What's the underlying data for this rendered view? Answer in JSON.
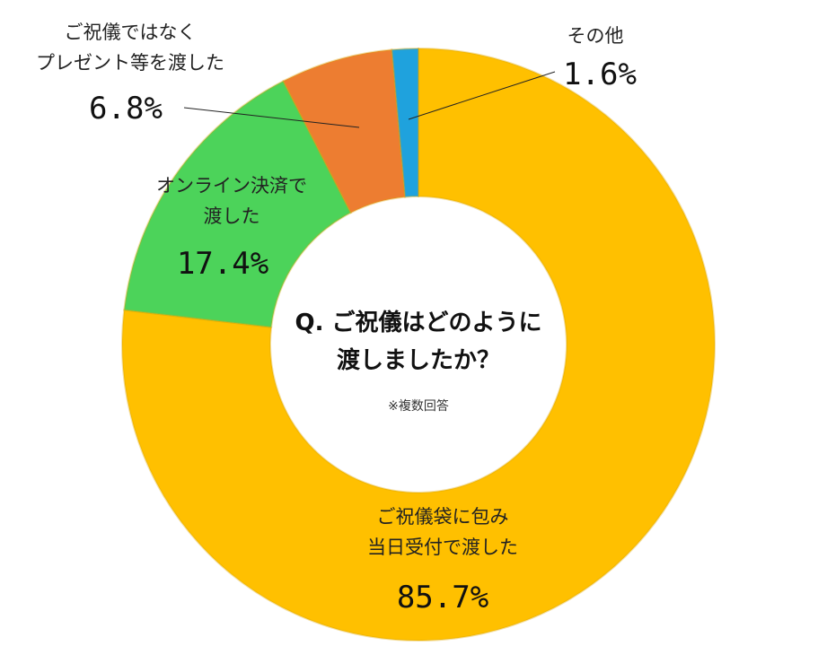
{
  "chart_data": {
    "type": "pie",
    "question_line1": "Q. ご祝儀はどのように",
    "question_line2": "渡しましたか？",
    "note": "※複数回答",
    "slices": [
      {
        "label_line1": "ご祝儀袋に包み",
        "label_line2": "当日受付で渡した",
        "value": 85.7,
        "value_text": "85.7%",
        "color": "#FFC000"
      },
      {
        "label_line1": "オンライン決済で",
        "label_line2": "渡した",
        "value": 17.4,
        "value_text": "17.4%",
        "color": "#4CD35A"
      },
      {
        "label_line1": "ご祝儀ではなく",
        "label_line2": "プレゼント等を渡した",
        "value": 6.8,
        "value_text": "6.8%",
        "color": "#ED7D31"
      },
      {
        "label_line1": "その他",
        "label_line2": "",
        "value": 1.6,
        "value_text": "1.6%",
        "color": "#1FA2DD"
      }
    ]
  }
}
